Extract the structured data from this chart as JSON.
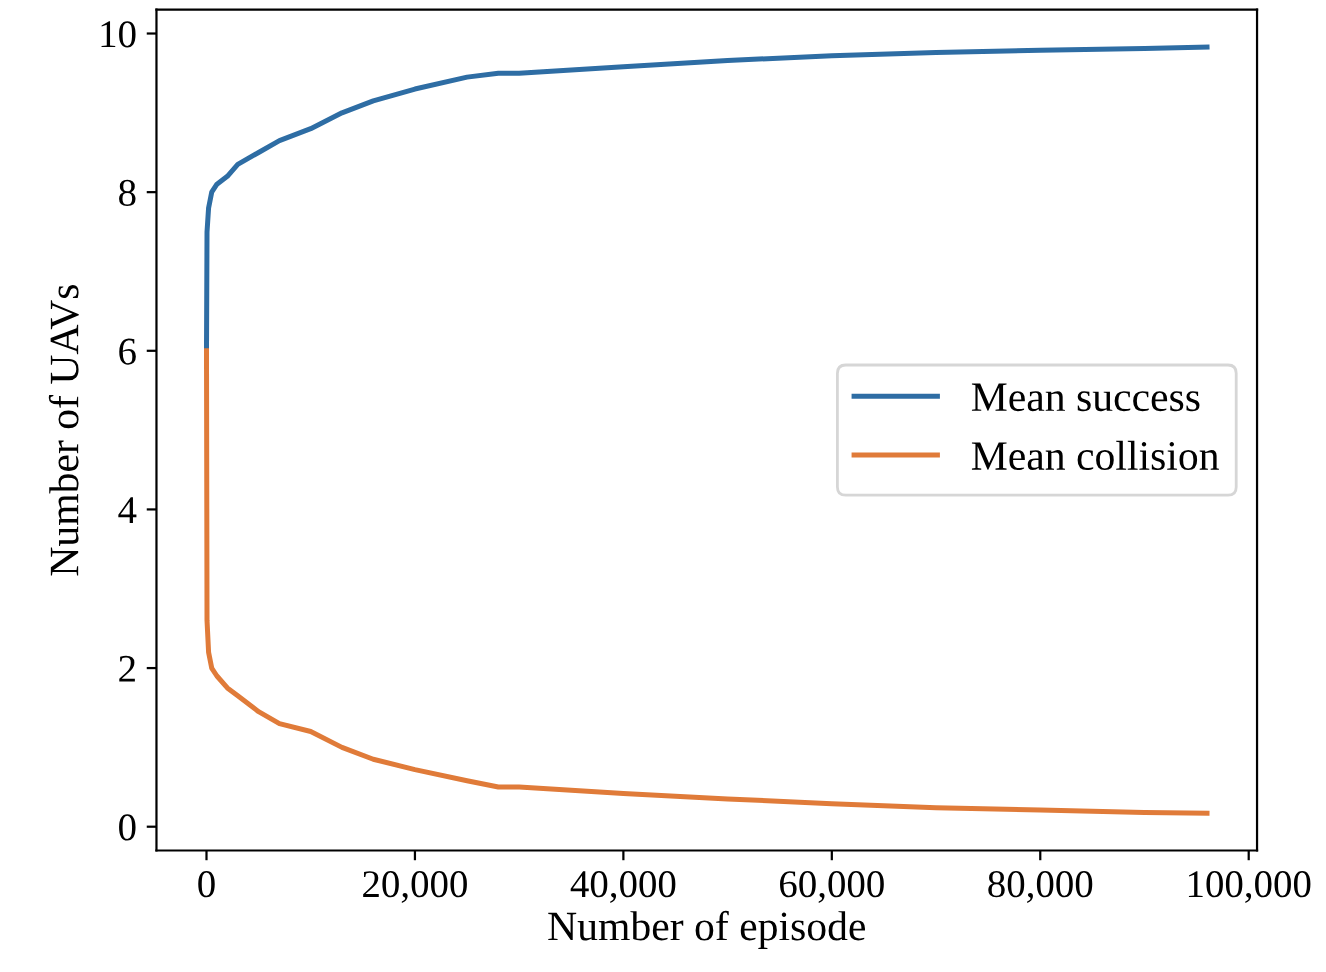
{
  "chart_data": {
    "type": "line",
    "xlabel": "Number of episode",
    "ylabel": "Number of UAVs",
    "xlim": [
      -4800,
      100800
    ],
    "ylim": [
      -0.3,
      10.3
    ],
    "xticks": [
      {
        "value": 0,
        "label": "0"
      },
      {
        "value": 20000,
        "label": "20,000"
      },
      {
        "value": 40000,
        "label": "40,000"
      },
      {
        "value": 60000,
        "label": "60,000"
      },
      {
        "value": 80000,
        "label": "80,000"
      },
      {
        "value": 100000,
        "label": "100,000"
      }
    ],
    "yticks": [
      0,
      2,
      4,
      6,
      8,
      10
    ],
    "x": [
      0,
      50,
      200,
      500,
      1000,
      2000,
      3000,
      5000,
      7000,
      10000,
      13000,
      16000,
      20000,
      25000,
      28000,
      30000,
      40000,
      50000,
      60000,
      70000,
      80000,
      90000,
      96000
    ],
    "series": [
      {
        "name": "Mean success",
        "color": "#2e6da4",
        "values": [
          6.0,
          7.5,
          7.8,
          8.0,
          8.1,
          8.2,
          8.35,
          8.5,
          8.65,
          8.8,
          9.0,
          9.15,
          9.3,
          9.45,
          9.5,
          9.5,
          9.58,
          9.66,
          9.72,
          9.76,
          9.79,
          9.81,
          9.83
        ]
      },
      {
        "name": "Mean collision",
        "color": "#e07b39",
        "values": [
          6.0,
          2.6,
          2.2,
          2.0,
          1.9,
          1.75,
          1.65,
          1.45,
          1.3,
          1.2,
          1.0,
          0.85,
          0.72,
          0.58,
          0.5,
          0.5,
          0.42,
          0.35,
          0.29,
          0.24,
          0.21,
          0.18,
          0.17
        ]
      }
    ],
    "legend": "center right",
    "grid": false
  }
}
